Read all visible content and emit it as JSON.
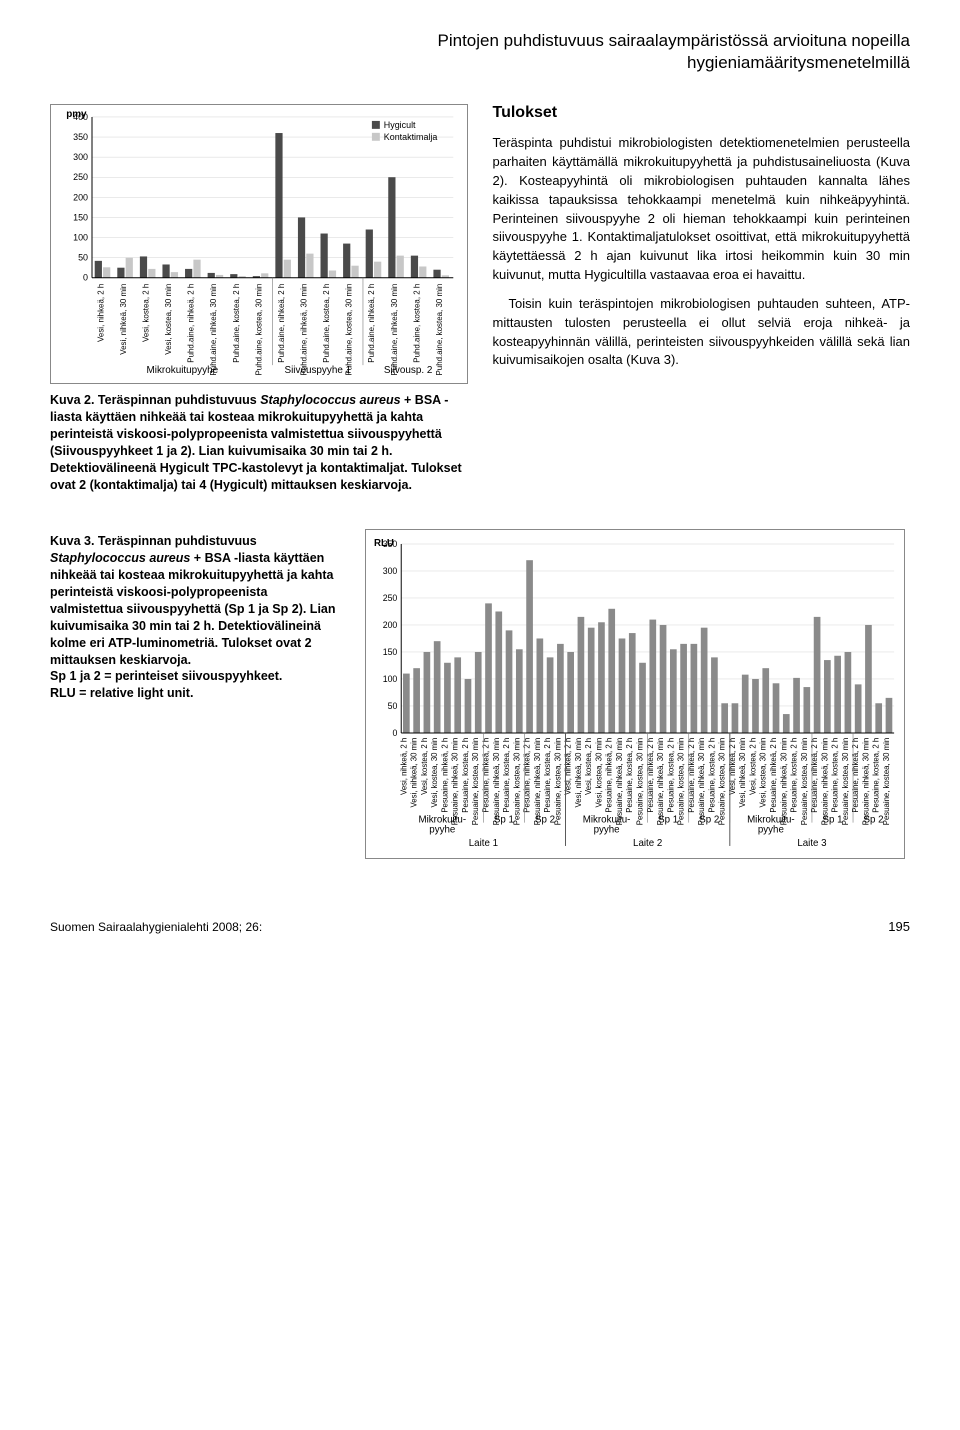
{
  "header": {
    "title_line1": "Pintojen puhdistuvuus sairaalaympäristössä arvioituna nopeilla",
    "title_line2": "hygieniamääritysmenetelmillä"
  },
  "results": {
    "heading": "Tulokset",
    "para1": "Teräspinta puhdistui mikrobiologisten detektiomenetelmien perusteella parhaiten käyttämällä mikrokuitupyyhettä ja puhdistusaineliuosta (Kuva 2). Kosteapyyhintä oli mikrobiologisen puhtauden kannalta lähes kaikissa tapauksissa tehokkaampi menetelmä kuin nihkeäpyyhintä. Perinteinen siivouspyyhe 2 oli hieman tehokkaampi kuin perinteinen siivouspyyhe 1. Kontaktimaljatulokset osoittivat, että mikrokuitupyyhettä käytettäessä 2 h ajan kuivunut lika irtosi heikommin kuin 30 min kuivunut, mutta Hygicultilla vastaavaa eroa ei havaittu.",
    "para2": "Toisin kuin teräspintojen mikrobiologisen puhtauden suhteen, ATP-mittausten tulosten perusteella ei ollut selviä eroja nihkeä- ja kosteapyyhinnän välillä, perinteisten siivouspyyhkeiden välillä sekä lian kuivumisaikojen osalta (Kuva 3)."
  },
  "kuva2_caption": {
    "lead": "Kuva 2. Teräspinnan puhdistuvuus ",
    "ital": "Staphylococcus aureus",
    "rest": " + BSA -liasta käyttäen nihkeää tai kosteaa mikrokuitupyyhettä ja kahta perinteistä viskoosi-polypropeenista valmistettua siivouspyyhettä (Siivouspyyhkeet 1 ja 2). Lian kuivumisaika 30 min tai 2 h. Detektiovälineenä Hygicult TPC-kastolevyt ja kontaktimaljat. Tulokset ovat 2 (kontaktimalja) tai 4 (Hygicult) mittauksen keskiarvoja."
  },
  "kuva3_caption": {
    "lead": "Kuva 3. Teräspinnan puhdistuvuus ",
    "ital": "Staphylococcus aureus",
    "rest": " + BSA -liasta käyttäen nihkeää tai kosteaa mikrokuitupyyhettä ja kahta perinteistä viskoosi-polypropeenista valmistettua siivouspyyhettä (Sp 1 ja Sp 2). Lian kuivumisaika 30 min tai 2 h. Detektiovälineinä kolme eri ATP-luminometriä. Tulokset ovat 2 mittauksen keskiarvoja.",
    "line2": "Sp 1 ja 2 = perinteiset siivouspyyhkeet.",
    "line3": "RLU = relative light unit."
  },
  "chart1": {
    "type": "bar",
    "ylabel": "pmy",
    "ylim": [
      0,
      400
    ],
    "ytick_step": 50,
    "legend": [
      "Hygicult",
      "Kontaktimalja"
    ],
    "legend_colors": [
      "#4a4a4a",
      "#c7c7c7"
    ],
    "background_color": "#ffffff",
    "grid_color": "#d4d4d4",
    "axis_color": "#000000",
    "groups": [
      {
        "label": "Mikrokuitupyyhe",
        "bars": [
          {
            "cat": "Vesi, nihkeä, 2 h",
            "hyg": 42,
            "kont": 26
          },
          {
            "cat": "Vesi, nihkeä, 30 min",
            "hyg": 25,
            "kont": 50
          },
          {
            "cat": "Vesi, kostea, 2 h",
            "hyg": 53,
            "kont": 22
          },
          {
            "cat": "Vesi, kostea, 30 min",
            "hyg": 33,
            "kont": 14
          },
          {
            "cat": "Puhd.aine, nihkeä, 2 h",
            "hyg": 22,
            "kont": 45
          },
          {
            "cat": "Puhd.aine, nihkeä, 30 min",
            "hyg": 12,
            "kont": 7
          },
          {
            "cat": "Puhd.aine, kostea, 2 h",
            "hyg": 9,
            "kont": 4
          },
          {
            "cat": "Puhd.aine, kostea, 30 min",
            "hyg": 4,
            "kont": 11
          }
        ]
      },
      {
        "label": "Siivouspyyhe 1",
        "bars": [
          {
            "cat": "Puhd.aine, nihkeä, 2 h",
            "hyg": 360,
            "kont": 45
          },
          {
            "cat": "Puhd.aine, nihkeä, 30 min",
            "hyg": 150,
            "kont": 60
          },
          {
            "cat": "Puhd.aine, kostea, 2 h",
            "hyg": 110,
            "kont": 18
          },
          {
            "cat": "Puhd.aine, kostea, 30 min",
            "hyg": 85,
            "kont": 30
          }
        ]
      },
      {
        "label": "Siivousp. 2",
        "bars": [
          {
            "cat": "Puhd.aine, nihkeä, 2 h",
            "hyg": 120,
            "kont": 40
          },
          {
            "cat": "Puhd.aine, nihkeä, 30 min",
            "hyg": 250,
            "kont": 55
          },
          {
            "cat": "Puhd.aine, kostea, 2 h",
            "hyg": 55,
            "kont": 28
          },
          {
            "cat": "Puhd.aine, kostea, 30 min",
            "hyg": 20,
            "kont": 6
          }
        ]
      }
    ]
  },
  "chart2": {
    "type": "bar",
    "ylabel": "RLU",
    "ylim": [
      0,
      350
    ],
    "ytick_step": 50,
    "bar_color": "#8a8a8a",
    "background_color": "#ffffff",
    "grid_color": "#d4d4d4",
    "axis_color": "#000000",
    "devices": [
      {
        "label": "Laite 1",
        "subgroups": [
          {
            "label": "Mikrokuitu-\\npyyhe",
            "cats": [
              "Vesi, nihkeä, 2 h",
              "Vesi, nihkeä, 30 min",
              "Vesi, kostea, 2 h",
              "Vesi, kostea, 30 min",
              "Pesuaine, nihkeä, 2 h",
              "Pesuaine, nihkeä, 30 min",
              "Pesuaine, kostea, 2 h",
              "Pesuaine, kostea, 30 min"
            ],
            "vals": [
              110,
              120,
              150,
              170,
              130,
              140,
              100,
              150
            ]
          },
          {
            "label": "Sp 1",
            "cats": [
              "Pesuaine, nihkeä, 2 h",
              "Pesuaine, nihkeä, 30 min",
              "Pesuaine, kostea, 2 h",
              "Pesuaine, kostea, 30 min"
            ],
            "vals": [
              240,
              225,
              190,
              155
            ]
          },
          {
            "label": "Sp 2",
            "cats": [
              "Pesuaine, nihkeä, 2 h",
              "Pesuaine, nihkeä, 30 min",
              "Pesuaine, kostea, 2 h",
              "Pesuaine, kostea, 30 min"
            ],
            "vals": [
              320,
              175,
              140,
              165
            ]
          }
        ]
      },
      {
        "label": "Laite 2",
        "subgroups": [
          {
            "label": "Mikrokuitu-\\npyyhe",
            "cats": [
              "Vesi, nihkeä, 2 h",
              "Vesi, nihkeä, 30 min",
              "Vesi, kostea, 2 h",
              "Vesi, kostea, 30 min",
              "Pesuaine, nihkeä, 2 h",
              "Pesuaine, nihkeä, 30 min",
              "Pesuaine, kostea, 2 h",
              "Pesuaine, kostea, 30 min"
            ],
            "vals": [
              150,
              215,
              195,
              205,
              230,
              175,
              185,
              130
            ]
          },
          {
            "label": "Sp 1",
            "cats": [
              "Pesuaine, nihkeä, 2 h",
              "Pesuaine, nihkeä, 30 min",
              "Pesuaine, kostea, 2 h",
              "Pesuaine, kostea, 30 min"
            ],
            "vals": [
              210,
              200,
              155,
              165
            ]
          },
          {
            "label": "Sp 2",
            "cats": [
              "Pesuaine, nihkeä, 2 h",
              "Pesuaine, nihkeä, 30 min",
              "Pesuaine, kostea, 2 h",
              "Pesuaine, kostea, 30 min"
            ],
            "vals": [
              165,
              195,
              140,
              55
            ]
          }
        ]
      },
      {
        "label": "Laite 3",
        "subgroups": [
          {
            "label": "Mikrokuitu-\\npyyhe",
            "cats": [
              "Vesi, nihkeä, 2 h",
              "Vesi, nihkeä, 30 min",
              "Vesi, kostea, 2 h",
              "Vesi, kostea, 30 min",
              "Pesuaine, nihkeä, 2 h",
              "Pesuaine, nihkeä, 30 min",
              "Pesuaine, kostea, 2 h",
              "Pesuaine, kostea, 30 min"
            ],
            "vals": [
              55,
              108,
              100,
              120,
              92,
              35,
              102,
              85
            ]
          },
          {
            "label": "Sp 1",
            "cats": [
              "Pesuaine, nihkeä, 2 h",
              "Pesuaine, nihkeä, 30 min",
              "Pesuaine, kostea, 2 h",
              "Pesuaine, kostea, 30 min"
            ],
            "vals": [
              215,
              135,
              143,
              150
            ]
          },
          {
            "label": "Sp 2",
            "cats": [
              "Pesuaine, nihkeä, 2 h",
              "Pesuaine, nihkeä, 30 min",
              "Pesuaine, kostea, 2 h",
              "Pesuaine, kostea, 30 min"
            ],
            "vals": [
              90,
              200,
              55,
              65
            ]
          }
        ]
      }
    ]
  },
  "footer": {
    "journal": "Suomen Sairaalahygienialehti 2008; 26:",
    "page": "195"
  }
}
